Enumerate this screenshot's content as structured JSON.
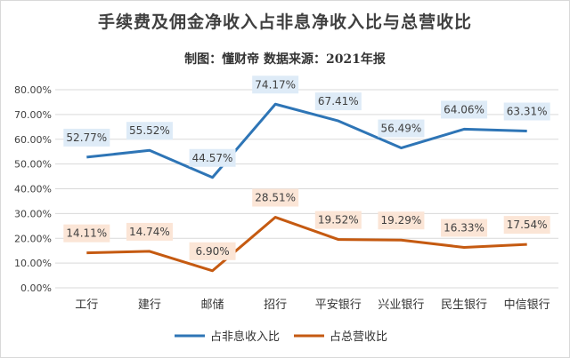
{
  "header": {
    "title": "手续费及佣金净收入占非息净收入比与总营收比",
    "subtitle": "制图：懂财帝   数据来源：2021年报"
  },
  "colors": {
    "series1": "#2E75B6",
    "series2": "#C55A11",
    "label_bg1": "#DEEBF7",
    "label_bg2": "#FBE5D6",
    "grid": "#D9D9D9"
  },
  "chart_data": {
    "type": "line",
    "title": "手续费及佣金净收入占非息净收入比与总营收比",
    "subtitle": "制图：懂财帝   数据来源：2021年报",
    "categories": [
      "工行",
      "建行",
      "邮储",
      "招行",
      "平安银行",
      "兴业银行",
      "民生银行",
      "中信银行"
    ],
    "series": [
      {
        "name": "占非息收入比",
        "values": [
          52.77,
          55.52,
          44.57,
          74.17,
          67.41,
          56.49,
          64.06,
          63.31
        ],
        "labels": [
          "52.77%",
          "55.52%",
          "44.57%",
          "74.17%",
          "67.41%",
          "56.49%",
          "64.06%",
          "63.31%"
        ]
      },
      {
        "name": "占总营收比",
        "values": [
          14.11,
          14.74,
          6.9,
          28.51,
          19.52,
          19.29,
          16.33,
          17.54
        ],
        "labels": [
          "14.11%",
          "14.74%",
          "6.90%",
          "28.51%",
          "19.52%",
          "19.29%",
          "16.33%",
          "17.54%"
        ]
      }
    ],
    "ylim": [
      0,
      80
    ],
    "yticks": [
      "0.00%",
      "10.00%",
      "20.00%",
      "30.00%",
      "40.00%",
      "50.00%",
      "60.00%",
      "70.00%",
      "80.00%"
    ],
    "grid": true,
    "legend": "bottom"
  }
}
